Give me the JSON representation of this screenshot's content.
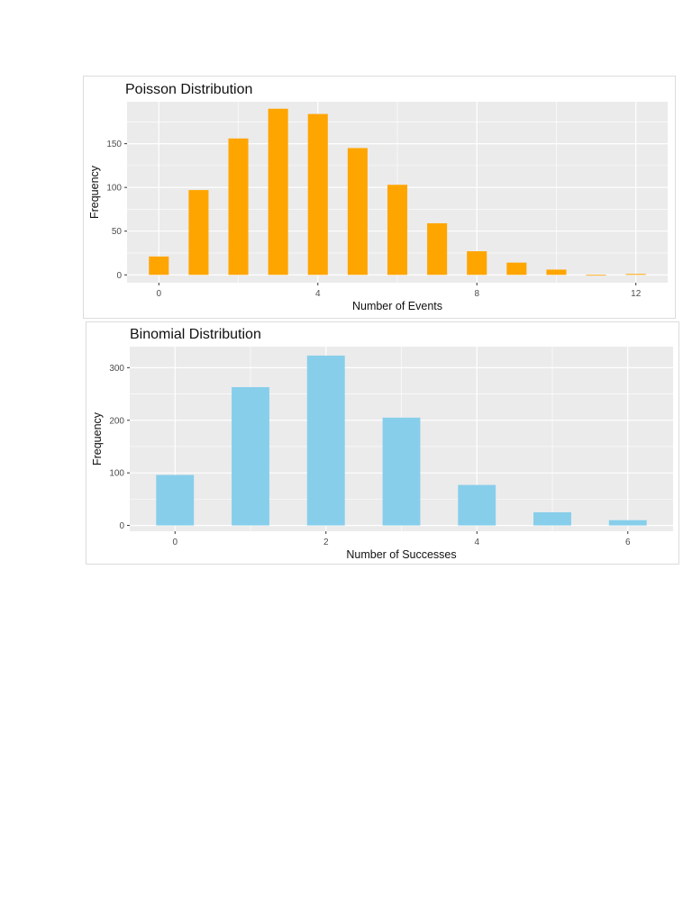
{
  "chart_data": [
    {
      "type": "bar",
      "title": "Poisson Distribution",
      "xlabel": "Number of Events",
      "ylabel": "Frequency",
      "x": [
        0,
        1,
        2,
        3,
        4,
        5,
        6,
        7,
        8,
        9,
        10,
        11,
        12
      ],
      "values": [
        21,
        97,
        156,
        190,
        184,
        145,
        103,
        59,
        27,
        14,
        6,
        0,
        1
      ],
      "xticks": [
        0,
        4,
        8,
        12
      ],
      "yticks": [
        0,
        50,
        100,
        150
      ],
      "xlim": [
        -0.8,
        12.8
      ],
      "ylim": [
        -9,
        198
      ],
      "bar_color": "#FFA500",
      "panel_color": "#EBEBEB",
      "grid": true,
      "legend": "none"
    },
    {
      "type": "bar",
      "title": "Binomial Distribution",
      "xlabel": "Number of Successes",
      "ylabel": "Frequency",
      "x": [
        0,
        1,
        2,
        3,
        4,
        5,
        6
      ],
      "values": [
        96,
        263,
        323,
        205,
        77,
        25,
        10
      ],
      "xticks": [
        0,
        2,
        4,
        6
      ],
      "yticks": [
        0,
        100,
        200,
        300
      ],
      "xlim": [
        -0.6,
        6.6
      ],
      "ylim": [
        -11,
        340
      ],
      "bar_color": "#87CEEB",
      "panel_color": "#EBEBEB",
      "grid": true,
      "legend": "none"
    }
  ]
}
